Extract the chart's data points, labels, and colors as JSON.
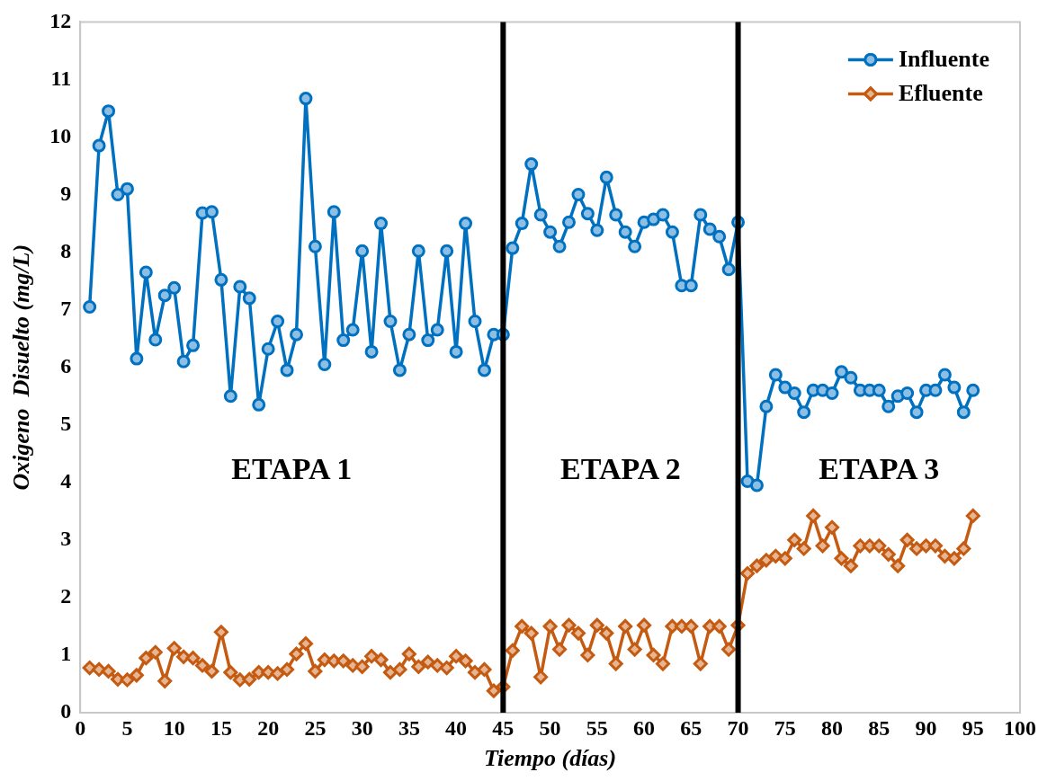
{
  "chart_data": {
    "type": "line",
    "xlabel": "Tiempo (días)",
    "ylabel": "Oxigeno  Disuelto (mg/L)",
    "x": [
      1,
      2,
      3,
      4,
      5,
      6,
      7,
      8,
      9,
      10,
      11,
      12,
      13,
      14,
      15,
      16,
      17,
      18,
      19,
      20,
      21,
      22,
      23,
      24,
      25,
      26,
      27,
      28,
      29,
      30,
      31,
      32,
      33,
      34,
      35,
      36,
      37,
      38,
      39,
      40,
      41,
      42,
      43,
      44,
      45,
      46,
      47,
      48,
      49,
      50,
      51,
      52,
      53,
      54,
      55,
      56,
      57,
      58,
      59,
      60,
      61,
      62,
      63,
      64,
      65,
      66,
      67,
      68,
      69,
      70,
      71,
      72,
      73,
      74,
      75,
      76,
      77,
      78,
      79,
      80,
      81,
      82,
      83,
      84,
      85,
      86,
      87,
      88,
      89,
      90,
      91,
      92,
      93,
      94,
      95
    ],
    "series": [
      {
        "name": "Influente",
        "color": "#0070c0",
        "marker": "circle",
        "values": [
          7.05,
          9.85,
          10.45,
          9.0,
          9.1,
          6.15,
          7.65,
          6.48,
          7.25,
          7.38,
          6.1,
          6.38,
          8.68,
          8.7,
          7.52,
          5.5,
          7.4,
          7.2,
          5.35,
          6.32,
          6.8,
          5.95,
          6.57,
          10.67,
          8.1,
          6.05,
          8.7,
          6.47,
          6.65,
          8.02,
          6.27,
          8.5,
          6.8,
          5.95,
          6.57,
          8.02,
          6.47,
          6.65,
          8.02,
          6.27,
          8.5,
          6.8,
          5.95,
          6.57,
          6.57,
          8.07,
          8.5,
          9.53,
          8.65,
          8.35,
          8.1,
          8.52,
          9.0,
          8.67,
          8.38,
          9.3,
          8.65,
          8.35,
          8.1,
          8.52,
          8.57,
          8.65,
          8.35,
          7.42,
          7.42,
          8.65,
          8.4,
          8.27,
          7.7,
          8.52,
          4.02,
          3.95,
          5.32,
          5.87,
          5.65,
          5.55,
          5.22,
          5.6,
          5.6,
          5.55,
          5.92,
          5.82,
          5.6,
          5.6,
          5.6,
          5.32,
          5.5,
          5.55,
          5.22,
          5.6,
          5.6,
          5.87,
          5.65,
          5.22,
          5.6
        ]
      },
      {
        "name": "Efluente",
        "color": "#c55a11",
        "marker": "diamond",
        "values": [
          0.78,
          0.75,
          0.72,
          0.58,
          0.57,
          0.65,
          0.95,
          1.05,
          0.55,
          1.12,
          0.97,
          0.95,
          0.82,
          0.72,
          1.4,
          0.7,
          0.57,
          0.58,
          0.7,
          0.7,
          0.68,
          0.75,
          1.02,
          1.2,
          0.72,
          0.92,
          0.9,
          0.9,
          0.82,
          0.8,
          0.98,
          0.92,
          0.7,
          0.75,
          1.02,
          0.8,
          0.88,
          0.82,
          0.78,
          0.98,
          0.9,
          0.7,
          0.75,
          0.38,
          0.45,
          1.08,
          1.5,
          1.38,
          0.62,
          1.5,
          1.1,
          1.52,
          1.38,
          1.0,
          1.52,
          1.38,
          0.85,
          1.5,
          1.1,
          1.52,
          1.0,
          0.85,
          1.5,
          1.5,
          1.5,
          0.85,
          1.5,
          1.5,
          1.1,
          1.52,
          2.42,
          2.55,
          2.65,
          2.72,
          2.68,
          3.0,
          2.85,
          3.42,
          2.9,
          3.22,
          2.68,
          2.55,
          2.9,
          2.9,
          2.9,
          2.75,
          2.55,
          3.0,
          2.85,
          2.9,
          2.9,
          2.72,
          2.68,
          2.85,
          3.42
        ]
      }
    ],
    "xlim": [
      0,
      100
    ],
    "xticks": [
      0,
      5,
      10,
      15,
      20,
      25,
      30,
      35,
      40,
      45,
      50,
      55,
      60,
      65,
      70,
      75,
      80,
      85,
      90,
      95,
      100
    ],
    "ylim": [
      0,
      12
    ],
    "yticks": [
      0,
      1,
      2,
      3,
      4,
      5,
      6,
      7,
      8,
      9,
      10,
      11,
      12
    ],
    "grid": false,
    "legend": "top right",
    "line_style": "solid",
    "ref_lines": [
      {
        "axis": "x",
        "value": 45,
        "color": "#000000"
      },
      {
        "axis": "x",
        "value": 70,
        "color": "#000000"
      }
    ],
    "annotations": [
      "ETAPA 1",
      "ETAPA 2",
      "ETAPA 3"
    ]
  }
}
